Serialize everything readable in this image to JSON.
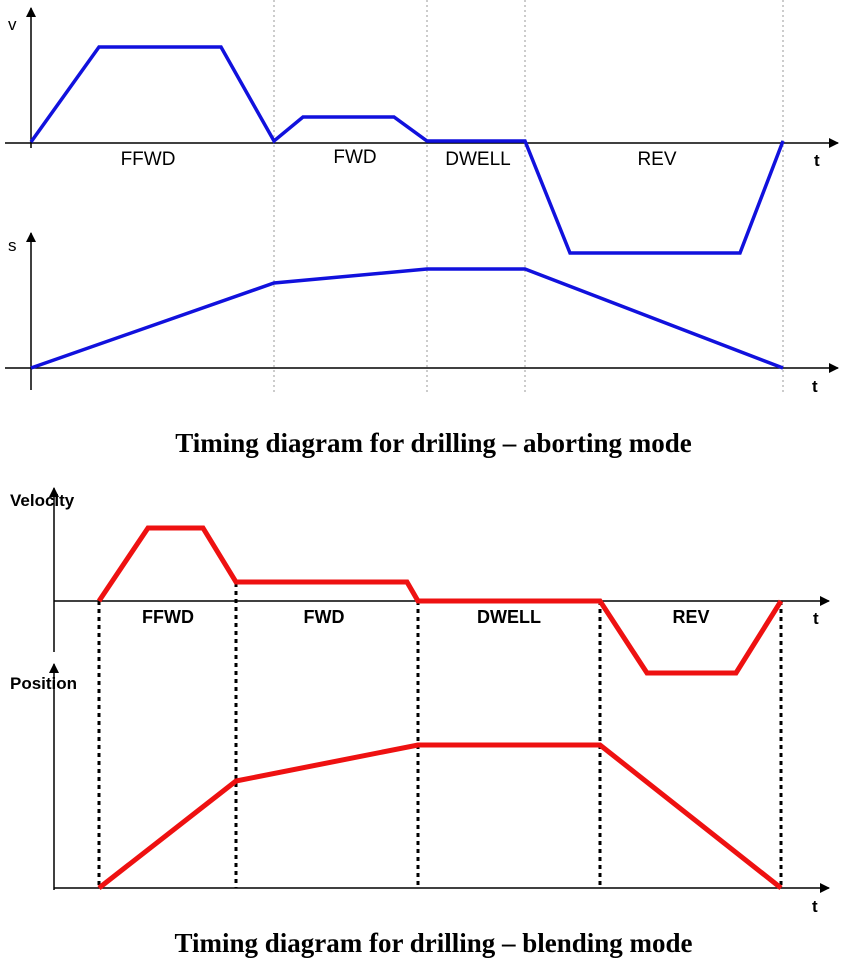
{
  "aborting": {
    "caption": "Timing diagram for drilling – aborting mode",
    "velocity_label": "v",
    "position_label": "s",
    "time_label": "t",
    "phases": [
      "FFWD",
      "FWD",
      "DWELL",
      "REV"
    ],
    "color": "#1111dd",
    "velocity_shape": "accelerate to peak, hold, decelerate to zero at end of FFWD; smaller trapezoid in FWD ending at zero; zero during DWELL; negative trapezoid during REV",
    "position_shape": "rises linearly through FFWD, slower rise in FWD, flat during DWELL, falls linearly back to zero during REV"
  },
  "blending": {
    "caption": "Timing diagram for drilling – blending mode",
    "velocity_label": "Velocity",
    "position_label": "Position",
    "time_label": "t",
    "phases": [
      "FFWD",
      "FWD",
      "DWELL",
      "REV"
    ],
    "color": "#ee1111",
    "velocity_shape": "trapezoid in FFWD blending into lower constant speed through FWD, drops to zero for DWELL, negative trapezoid during REV",
    "position_shape": "rises steeply in FFWD, slower in FWD, flat during DWELL, falls to zero during REV"
  }
}
